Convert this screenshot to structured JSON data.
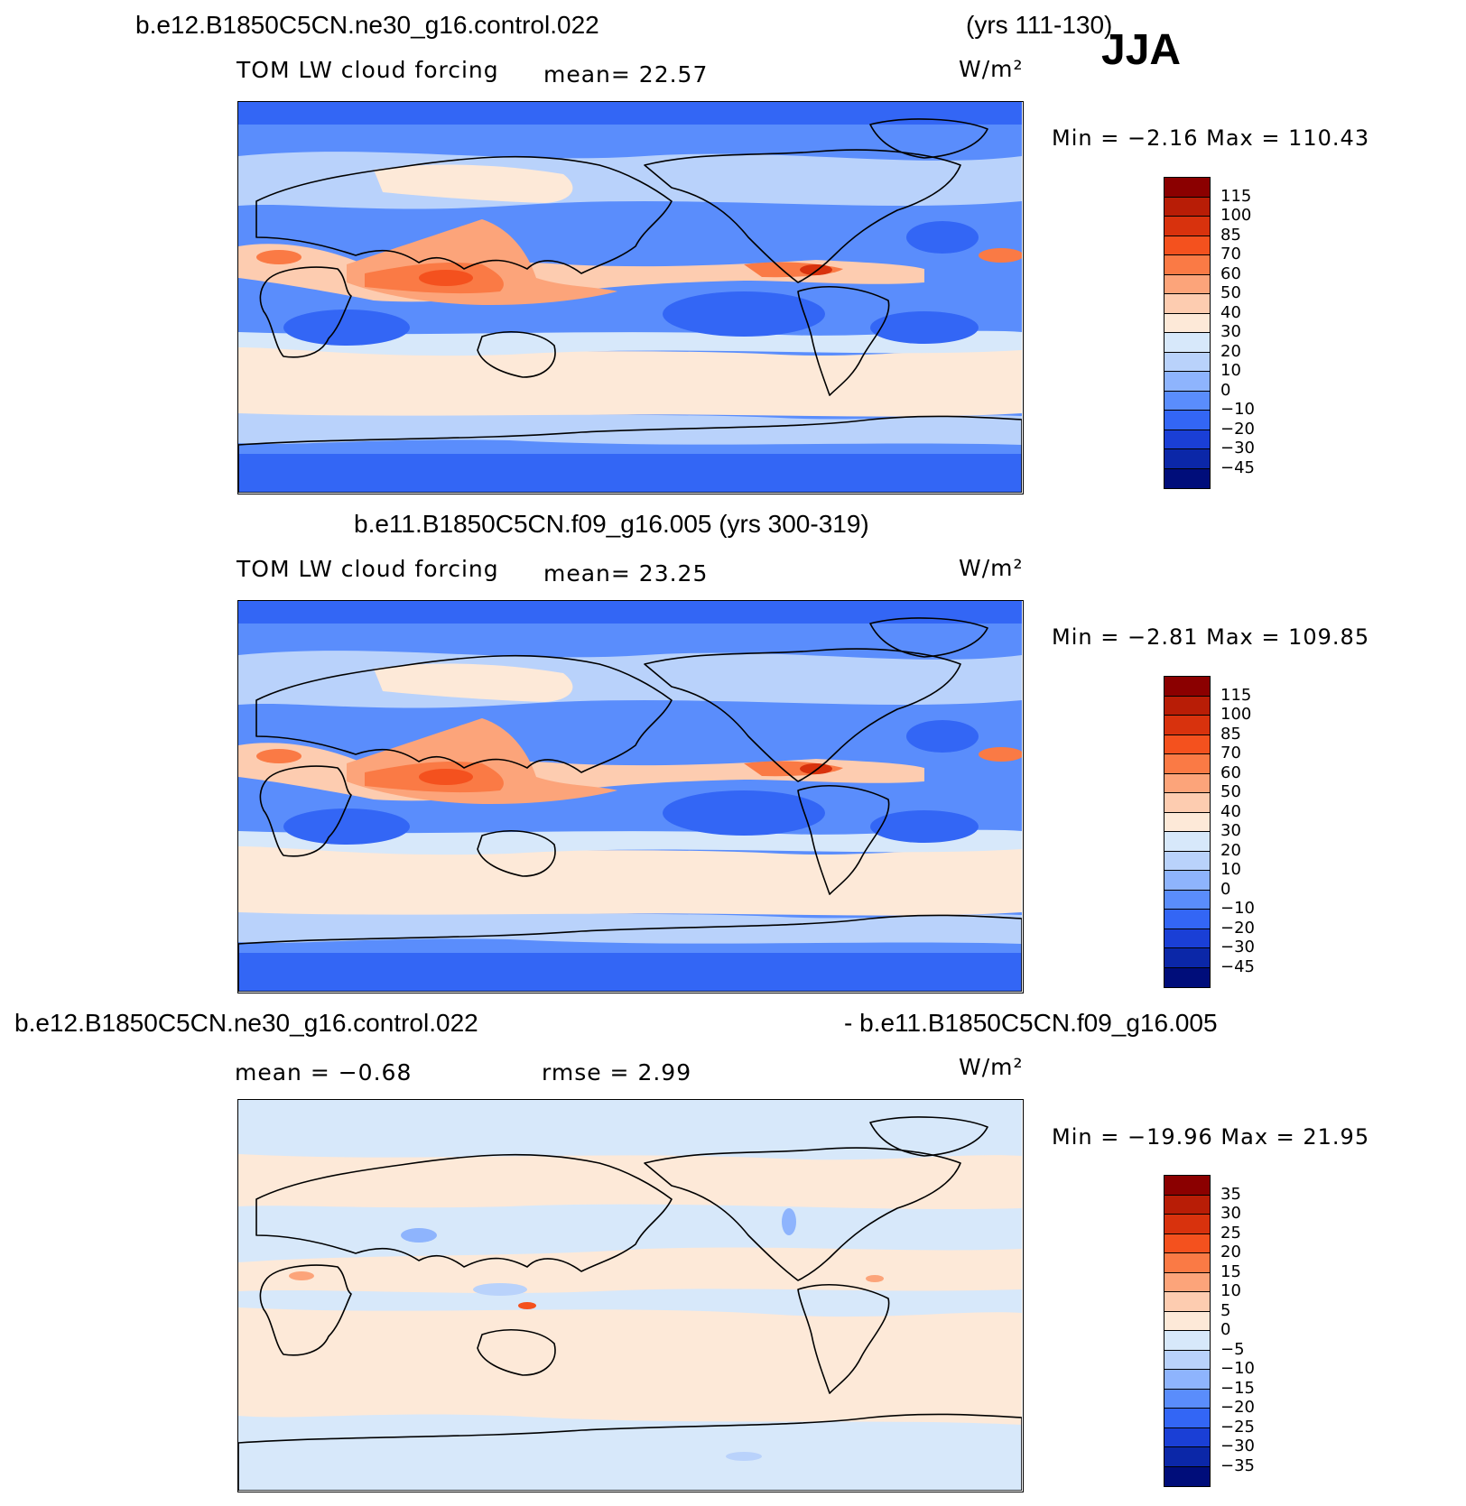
{
  "season": "JJA",
  "panels": [
    {
      "title_left": "b.e12.B1850C5CN.ne30_g16.control.022",
      "title_right": "(yrs 111-130)",
      "variable": "TOM LW cloud forcing",
      "stat1": "mean=   22.57",
      "stat2": "",
      "units": "W/m²",
      "minmax": "Min =   −2.16  Max  =  110.43",
      "colorbar_labels": [
        "115",
        "100",
        "85",
        "70",
        "60",
        "50",
        "40",
        "30",
        "20",
        "10",
        "0",
        "−10",
        "−20",
        "−30",
        "−45"
      ],
      "colorbar_colors": [
        "#8b0000",
        "#b81d06",
        "#d8320d",
        "#f4511e",
        "#fa7a45",
        "#fca47a",
        "#fdccb0",
        "#fde9d8",
        "#d7e8fa",
        "#b9d2fb",
        "#8eb4fd",
        "#5a8dfc",
        "#3366f5",
        "#1a3fd6",
        "#0b27a8",
        "#000d7a"
      ],
      "field_type": "mean"
    },
    {
      "title_left": "b.e11.B1850C5CN.f09_g16.005 (yrs 300-319)",
      "title_right": "",
      "variable": "TOM LW cloud forcing",
      "stat1": "mean=   23.25",
      "stat2": "",
      "units": "W/m²",
      "minmax": "Min =   −2.81  Max  =  109.85",
      "colorbar_labels": [
        "115",
        "100",
        "85",
        "70",
        "60",
        "50",
        "40",
        "30",
        "20",
        "10",
        "0",
        "−10",
        "−20",
        "−30",
        "−45"
      ],
      "colorbar_colors": [
        "#8b0000",
        "#b81d06",
        "#d8320d",
        "#f4511e",
        "#fa7a45",
        "#fca47a",
        "#fdccb0",
        "#fde9d8",
        "#d7e8fa",
        "#b9d2fb",
        "#8eb4fd",
        "#5a8dfc",
        "#3366f5",
        "#1a3fd6",
        "#0b27a8",
        "#000d7a"
      ],
      "field_type": "mean"
    },
    {
      "title_left": "b.e12.B1850C5CN.ne30_g16.control.022",
      "title_right": "- b.e11.B1850C5CN.f09_g16.005",
      "variable": "mean =    −0.68",
      "stat1": "rmse =     2.99",
      "stat2": "",
      "units": "W/m²",
      "minmax": "Min = −19.96  Max =   21.95",
      "colorbar_labels": [
        "35",
        "30",
        "25",
        "20",
        "15",
        "10",
        "5",
        "0",
        "−5",
        "−10",
        "−15",
        "−20",
        "−25",
        "−30",
        "−35"
      ],
      "colorbar_colors": [
        "#8b0000",
        "#b81d06",
        "#d8320d",
        "#f4511e",
        "#fa7a45",
        "#fca47a",
        "#fdccb0",
        "#fde9d8",
        "#d7e8fa",
        "#b9d2fb",
        "#8eb4fd",
        "#5a8dfc",
        "#3366f5",
        "#1a3fd6",
        "#0b27a8",
        "#000d7a"
      ],
      "field_type": "diff"
    }
  ]
}
